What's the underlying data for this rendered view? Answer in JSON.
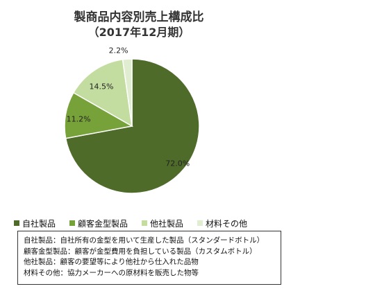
{
  "chart_data": {
    "type": "pie",
    "title": "製商品内容別売上構成比",
    "subtitle": "（2017年12月期）",
    "categories": [
      "自社製品",
      "顧客金型製品",
      "他社製品",
      "材料その他"
    ],
    "values": [
      72.0,
      11.2,
      14.5,
      2.2
    ],
    "labels": [
      "72.0%",
      "11.2%",
      "14.5%",
      "2.2%"
    ],
    "colors": [
      "#4e6b2a",
      "#77a23a",
      "#c3dda0",
      "#e0edd0"
    ],
    "legend_position": "bottom"
  },
  "notes": [
    "自社製品：自社所有の金型を用いて生産した製品（スタンダードボトル）",
    "顧客金型製品：顧客が金型費用を負担している製品（カスタムボトル）",
    "他社製品：顧客の要望等により他社から仕入れた品物",
    "材料その他：協力メーカーへの原材料を販売した物等"
  ]
}
